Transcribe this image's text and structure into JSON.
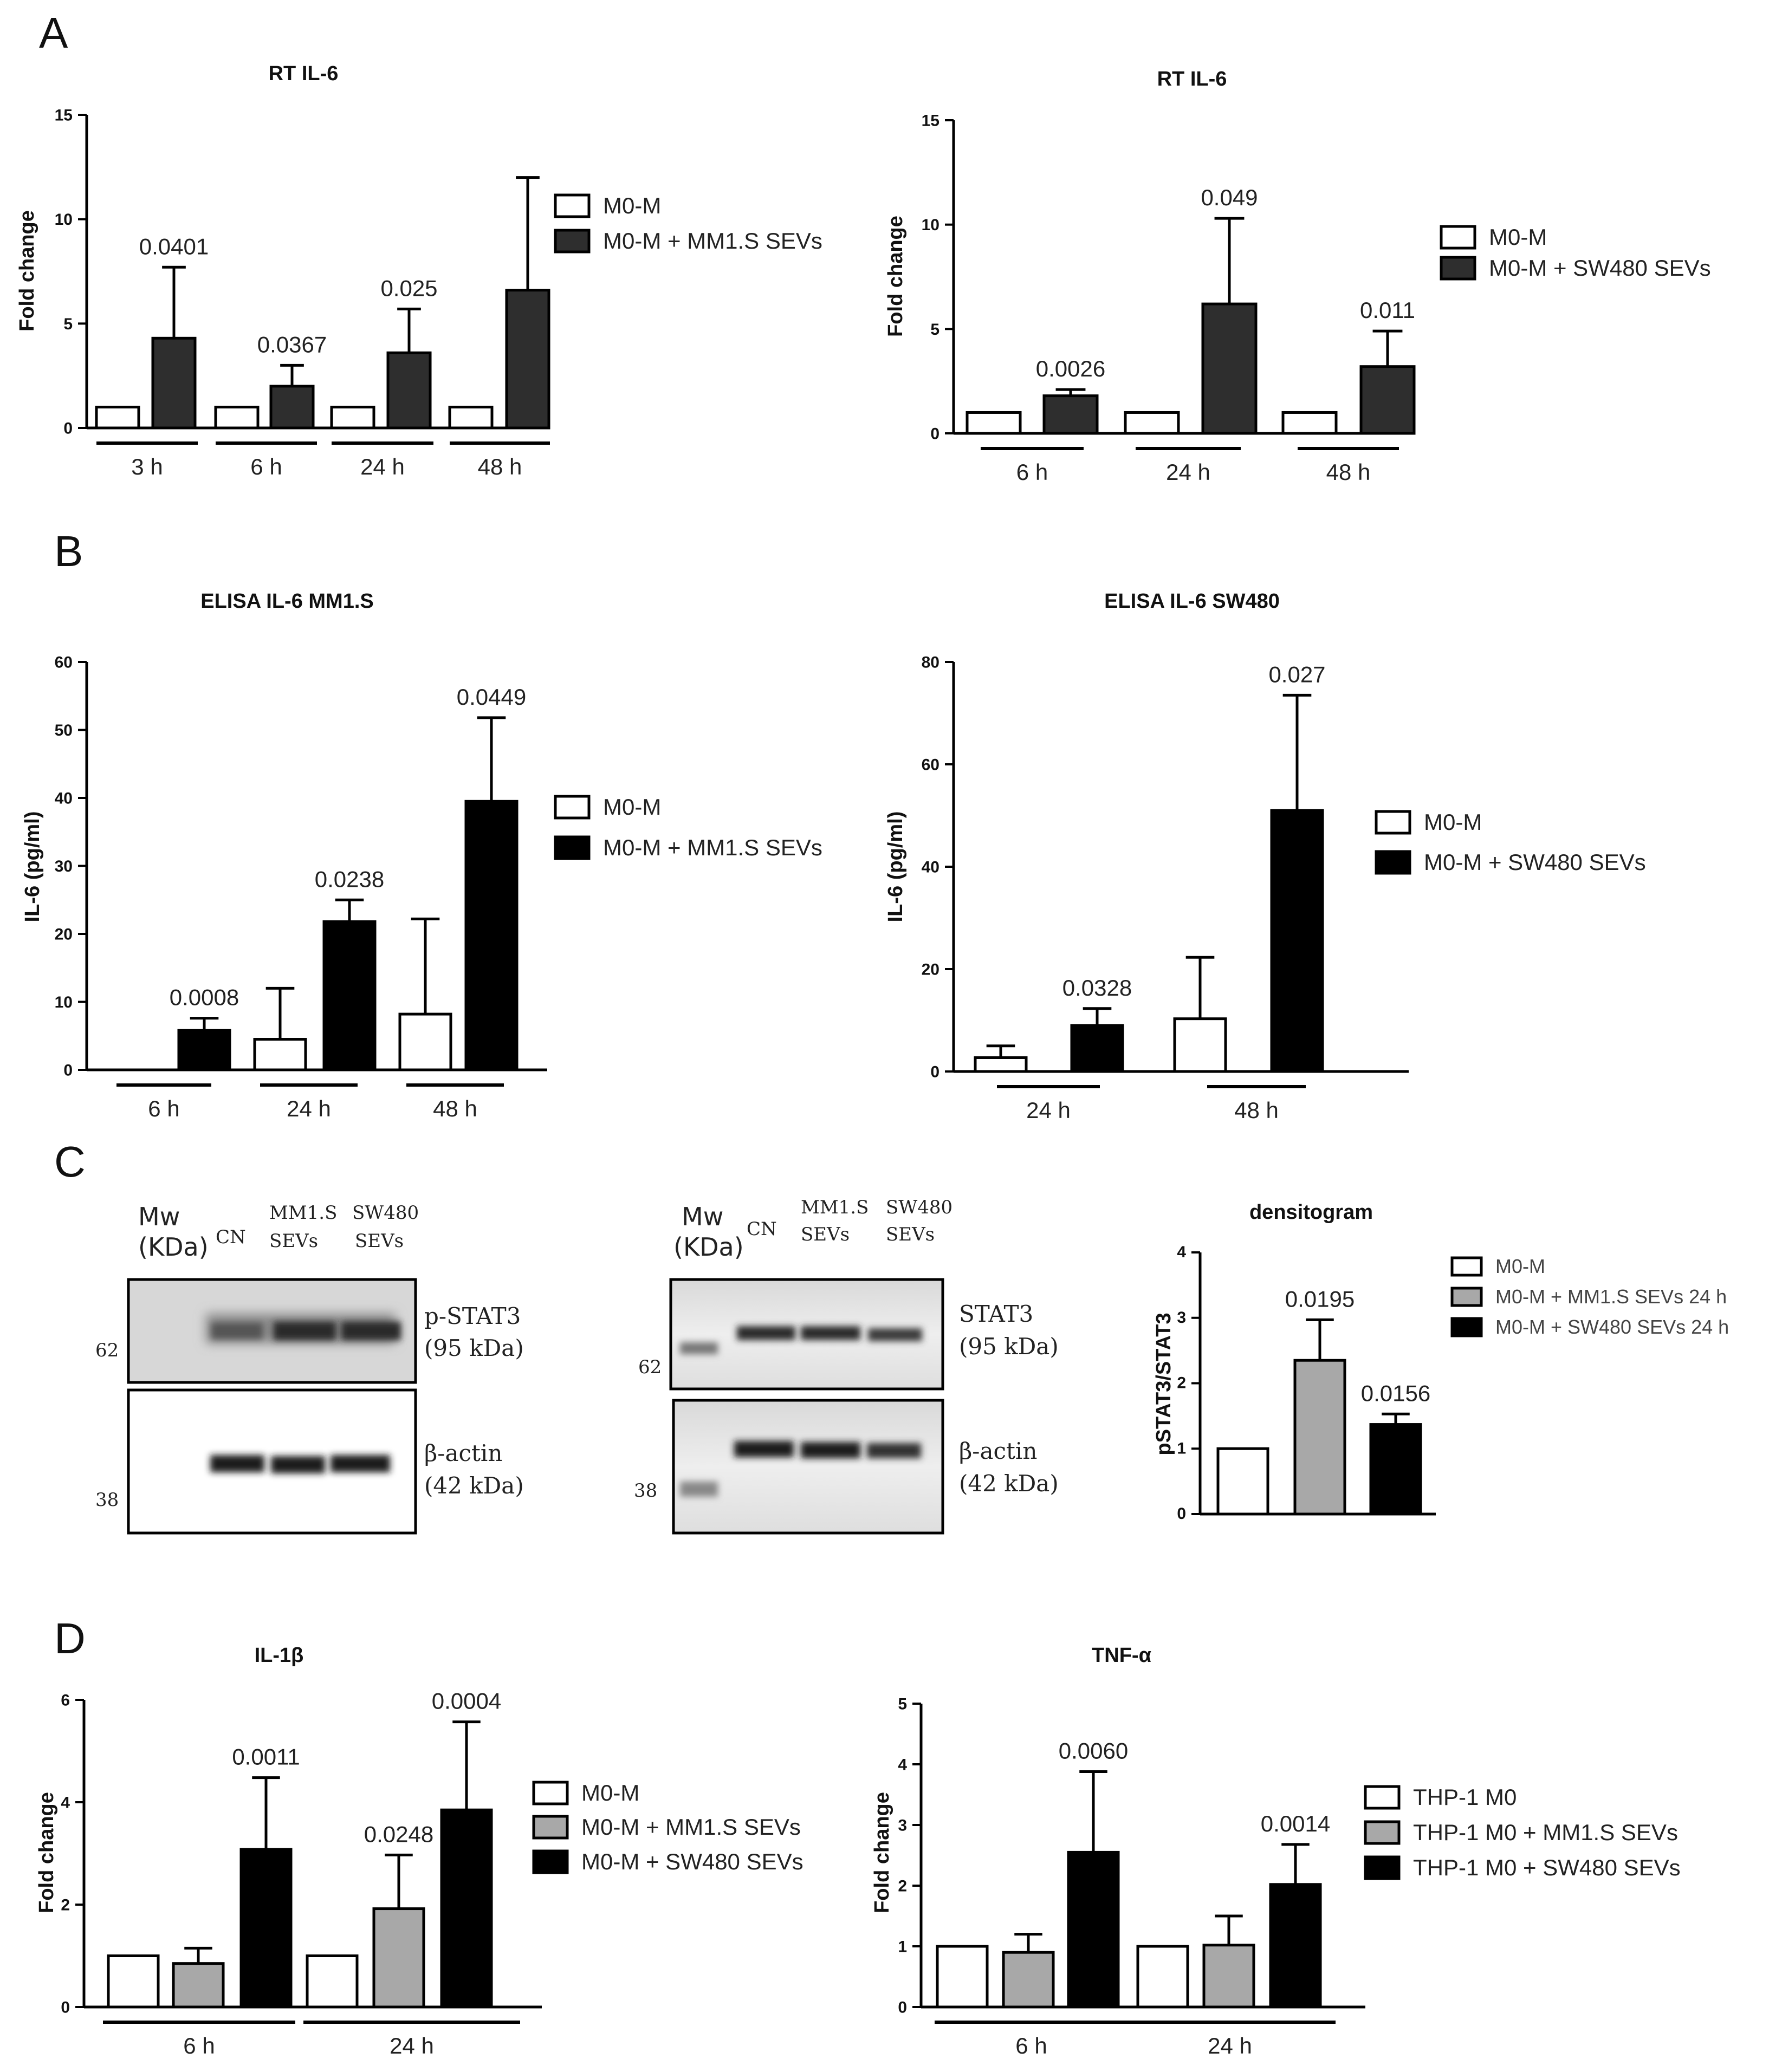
{
  "panels": {
    "A": "A",
    "B": "B",
    "C": "C",
    "D": "D"
  },
  "colors": {
    "white": "#ffffff",
    "dark": "#2e2e2e",
    "black": "#000000",
    "gray": "#a8a8a8"
  },
  "chart_data": [
    {
      "id": "a1",
      "type": "bar",
      "title": "RT IL-6",
      "ylabel": "Fold change",
      "ylim": [
        0,
        15
      ],
      "yticks": [
        0,
        5,
        10,
        15
      ],
      "categories": [
        "3 h",
        "6 h",
        "24 h",
        "48 h"
      ],
      "series": [
        {
          "name": "M0-M",
          "color": "white",
          "values": [
            1,
            1,
            1,
            1
          ],
          "err": [
            0,
            0,
            0,
            0
          ]
        },
        {
          "name": "M0-M + MM1.S SEVs",
          "color": "dark",
          "values": [
            4.3,
            2.0,
            3.6,
            6.6
          ],
          "err": [
            3.4,
            1.0,
            2.1,
            5.4
          ]
        }
      ],
      "pvalues": [
        {
          "cat": 0,
          "series": 1,
          "text": "0.0401"
        },
        {
          "cat": 1,
          "series": 1,
          "text": "0.0367"
        },
        {
          "cat": 2,
          "series": 1,
          "text": "0.025"
        }
      ]
    },
    {
      "id": "a2",
      "type": "bar",
      "title": "RT IL-6",
      "ylabel": "Fold change",
      "ylim": [
        0,
        15
      ],
      "yticks": [
        0,
        5,
        10,
        15
      ],
      "categories": [
        "6 h",
        "24 h",
        "48 h"
      ],
      "series": [
        {
          "name": "M0-M",
          "color": "white",
          "values": [
            1,
            1,
            1
          ],
          "err": [
            0,
            0,
            0
          ]
        },
        {
          "name": "M0-M + SW480 SEVs",
          "color": "dark",
          "values": [
            1.8,
            6.2,
            3.2
          ],
          "err": [
            0.3,
            4.1,
            1.7
          ]
        }
      ],
      "pvalues": [
        {
          "cat": 0,
          "series": 1,
          "text": "0.0026"
        },
        {
          "cat": 1,
          "series": 1,
          "text": "0.049"
        },
        {
          "cat": 2,
          "series": 1,
          "text": "0.011"
        }
      ]
    },
    {
      "id": "b1",
      "type": "bar",
      "title": "ELISA IL-6 MM1.S",
      "ylabel": "IL-6 (pg/ml)",
      "ylim": [
        0,
        60
      ],
      "yticks": [
        0,
        10,
        20,
        30,
        40,
        50,
        60
      ],
      "categories": [
        "6 h",
        "24 h",
        "48 h"
      ],
      "series": [
        {
          "name": "M0-M",
          "color": "white",
          "values": [
            0,
            4.5,
            8.2
          ],
          "err": [
            0,
            7.5,
            14
          ]
        },
        {
          "name": "M0-M + MM1.S SEVs",
          "color": "black",
          "values": [
            5.8,
            21.8,
            39.5
          ],
          "err": [
            1.8,
            3.2,
            12.3
          ]
        }
      ],
      "pvalues": [
        {
          "cat": 0,
          "series": 1,
          "text": "0.0008"
        },
        {
          "cat": 1,
          "series": 1,
          "text": "0.0238"
        },
        {
          "cat": 2,
          "series": 1,
          "text": "0.0449"
        }
      ]
    },
    {
      "id": "b2",
      "type": "bar",
      "title": "ELISA IL-6 SW480",
      "ylabel": "IL-6 (pg/ml)",
      "ylim": [
        0,
        80
      ],
      "yticks": [
        0,
        20,
        40,
        60,
        80
      ],
      "categories": [
        "24 h",
        "48 h"
      ],
      "series": [
        {
          "name": "M0-M",
          "color": "white",
          "values": [
            2.7,
            10.3
          ],
          "err": [
            2.3,
            12
          ]
        },
        {
          "name": "M0-M + SW480 SEVs",
          "color": "black",
          "values": [
            9.0,
            51
          ],
          "err": [
            3.3,
            22.5
          ]
        }
      ],
      "pvalues": [
        {
          "cat": 0,
          "series": 1,
          "text": "0.0328"
        },
        {
          "cat": 1,
          "series": 1,
          "text": "0.027"
        }
      ]
    },
    {
      "id": "c",
      "type": "bar",
      "title": "densitogram",
      "ylabel": "pSTAT3/STAT3",
      "ylim": [
        0,
        4
      ],
      "yticks": [
        0,
        1,
        2,
        3,
        4
      ],
      "categories": [
        ""
      ],
      "series": [
        {
          "name": "M0-M",
          "color": "white",
          "values": [
            1
          ],
          "err": [
            0
          ]
        },
        {
          "name": "M0-M + MM1.S SEVs 24 h",
          "color": "gray",
          "values": [
            2.35
          ],
          "err": [
            0.62
          ]
        },
        {
          "name": "M0-M + SW480 SEVs 24 h",
          "color": "black",
          "values": [
            1.37
          ],
          "err": [
            0.16
          ]
        }
      ],
      "pvalues": [
        {
          "cat": 0,
          "series": 1,
          "text": "0.0195"
        },
        {
          "cat": 0,
          "series": 2,
          "text": "0.0156"
        }
      ]
    },
    {
      "id": "d1",
      "type": "bar",
      "title": "IL-1β",
      "ylabel": "Fold change",
      "ylim": [
        0,
        6
      ],
      "yticks": [
        0,
        2,
        4,
        6
      ],
      "categories": [
        "6 h",
        "24 h"
      ],
      "series": [
        {
          "name": "M0-M",
          "color": "white",
          "values": [
            1,
            1
          ],
          "err": [
            0,
            0
          ]
        },
        {
          "name": "M0-M + MM1.S SEVs",
          "color": "gray",
          "values": [
            0.85,
            1.92
          ],
          "err": [
            0.3,
            1.05
          ]
        },
        {
          "name": "M0-M + SW480 SEVs",
          "color": "black",
          "values": [
            3.08,
            3.85
          ],
          "err": [
            1.4,
            1.72
          ]
        }
      ],
      "pvalues": [
        {
          "cat": 0,
          "series": 2,
          "text": "0.0011"
        },
        {
          "cat": 1,
          "series": 1,
          "text": "0.0248"
        },
        {
          "cat": 1,
          "series": 2,
          "text": "0.0004"
        }
      ]
    },
    {
      "id": "d2",
      "type": "bar",
      "title": "TNF-α",
      "ylabel": "Fold change",
      "ylim": [
        0,
        5
      ],
      "yticks": [
        0,
        1,
        2,
        3,
        4,
        5
      ],
      "categories": [
        "6 h",
        "24 h"
      ],
      "series": [
        {
          "name": "THP-1 M0",
          "color": "white",
          "values": [
            1,
            1
          ],
          "err": [
            0,
            0
          ]
        },
        {
          "name": "THP-1 M0 + MM1.S SEVs",
          "color": "gray",
          "values": [
            0.9,
            1.02
          ],
          "err": [
            0.3,
            0.48
          ]
        },
        {
          "name": "THP-1 M0 + SW480 SEVs",
          "color": "black",
          "values": [
            2.55,
            2.02
          ],
          "err": [
            1.33,
            0.66
          ]
        }
      ],
      "pvalues": [
        {
          "cat": 0,
          "series": 2,
          "text": "0.0060"
        },
        {
          "cat": 1,
          "series": 2,
          "text": "0.0014"
        }
      ]
    }
  ],
  "western_blots": {
    "left": {
      "mw_label": "Mw",
      "kda_label": "(KDa)",
      "lanes": [
        "CN",
        "MM1.S",
        "SEVs",
        "SW480",
        "SEVs"
      ],
      "top_band_label": "p-STAT3",
      "top_band_size": "(95 kDa)",
      "top_marker": "62",
      "bottom_band_label": "β-actin",
      "bottom_band_size": "(42 kDa)",
      "bottom_marker": "38"
    },
    "right": {
      "mw_label": "Mw",
      "kda_label": "(KDa)",
      "lanes": [
        "CN",
        "MM1.S",
        "SEVs",
        "SW480",
        "SEVs"
      ],
      "top_band_label": "STAT3",
      "top_band_size": "(95 kDa)",
      "top_marker": "62",
      "bottom_band_label": "β-actin",
      "bottom_band_size": "(42 kDa)",
      "bottom_marker": "38"
    }
  }
}
